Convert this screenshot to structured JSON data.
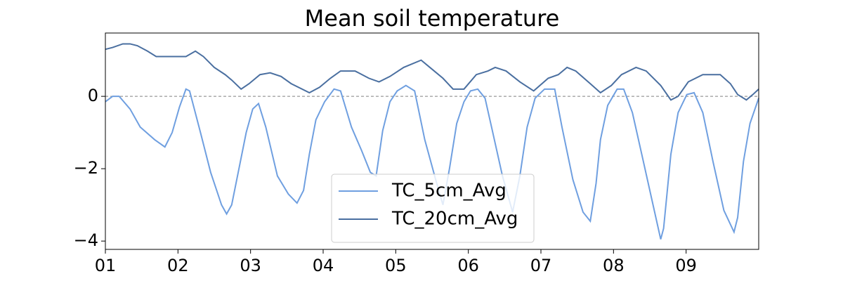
{
  "chart_data": {
    "type": "line",
    "title": "Mean soil temperature",
    "xlim": [
      1,
      10
    ],
    "xticks": [
      {
        "value": 1,
        "label": "01"
      },
      {
        "value": 2,
        "label": "02"
      },
      {
        "value": 3,
        "label": "03"
      },
      {
        "value": 4,
        "label": "04"
      },
      {
        "value": 5,
        "label": "05"
      },
      {
        "value": 6,
        "label": "06"
      },
      {
        "value": 7,
        "label": "07"
      },
      {
        "value": 8,
        "label": "08"
      },
      {
        "value": 9,
        "label": "09"
      }
    ],
    "ylim": [
      -4.23,
      1.75
    ],
    "yticks": [
      {
        "value": -4,
        "label": "−4"
      },
      {
        "value": -2,
        "label": "−2"
      },
      0
    ],
    "reference_line": 0,
    "legend": "lower center",
    "series": [
      {
        "name": "TC_5cm_Avg",
        "color": "#6f9fe0",
        "x": [
          1.0,
          1.1,
          1.19,
          1.34,
          1.48,
          1.68,
          1.82,
          1.92,
          2.02,
          2.11,
          2.16,
          2.31,
          2.45,
          2.6,
          2.67,
          2.74,
          2.84,
          2.94,
          3.03,
          3.11,
          3.21,
          3.37,
          3.52,
          3.64,
          3.73,
          3.81,
          3.9,
          4.02,
          4.15,
          4.24,
          4.39,
          4.53,
          4.65,
          4.73,
          4.82,
          4.92,
          5.02,
          5.14,
          5.26,
          5.4,
          5.55,
          5.65,
          5.74,
          5.84,
          5.94,
          6.03,
          6.13,
          6.23,
          6.32,
          6.47,
          6.61,
          6.71,
          6.81,
          6.92,
          7.05,
          7.19,
          7.29,
          7.44,
          7.58,
          7.68,
          7.76,
          7.82,
          7.92,
          8.05,
          8.14,
          8.26,
          8.4,
          8.55,
          8.65,
          8.69,
          8.79,
          8.89,
          9.01,
          9.11,
          9.23,
          9.37,
          9.52,
          9.66,
          9.71,
          9.79,
          9.88,
          10.0
        ],
        "values": [
          -0.15,
          0,
          0,
          -0.35,
          -0.85,
          -1.2,
          -1.4,
          -1.0,
          -0.3,
          0.2,
          0.15,
          -1.0,
          -2.1,
          -3.0,
          -3.25,
          -3.0,
          -2.0,
          -1.0,
          -0.35,
          -0.2,
          -0.85,
          -2.2,
          -2.7,
          -2.95,
          -2.6,
          -1.6,
          -0.65,
          -0.15,
          0.2,
          0.15,
          -0.85,
          -1.5,
          -2.1,
          -2.2,
          -0.95,
          -0.15,
          0.15,
          0.3,
          0.15,
          -1.2,
          -2.3,
          -3.0,
          -2.0,
          -0.75,
          -0.15,
          0.15,
          0.2,
          -0.05,
          -0.85,
          -2.2,
          -3.2,
          -2.2,
          -0.85,
          -0.05,
          0.2,
          0.2,
          -0.85,
          -2.3,
          -3.2,
          -3.45,
          -2.4,
          -1.2,
          -0.25,
          0.2,
          0.2,
          -0.45,
          -1.7,
          -3.05,
          -3.95,
          -3.65,
          -1.6,
          -0.45,
          0.05,
          0.1,
          -0.45,
          -1.8,
          -3.15,
          -3.75,
          -3.35,
          -1.8,
          -0.75,
          -0.05
        ]
      },
      {
        "name": "TC_20cm_Avg",
        "color": "#4a6fa0",
        "x": [
          1.0,
          1.1,
          1.24,
          1.34,
          1.44,
          1.58,
          1.7,
          1.87,
          2.11,
          2.24,
          2.35,
          2.5,
          2.65,
          2.74,
          2.87,
          2.98,
          3.13,
          3.27,
          3.42,
          3.56,
          3.81,
          3.95,
          4.1,
          4.24,
          4.44,
          4.63,
          4.77,
          4.92,
          5.11,
          5.35,
          5.47,
          5.65,
          5.79,
          5.94,
          6.11,
          6.27,
          6.37,
          6.52,
          6.71,
          6.9,
          7.1,
          7.24,
          7.36,
          7.48,
          7.68,
          7.82,
          7.97,
          8.11,
          8.31,
          8.45,
          8.65,
          8.79,
          8.89,
          9.03,
          9.23,
          9.47,
          9.61,
          9.71,
          9.83,
          9.92,
          10.0
        ],
        "values": [
          1.3,
          1.35,
          1.45,
          1.45,
          1.4,
          1.25,
          1.1,
          1.1,
          1.1,
          1.25,
          1.1,
          0.8,
          0.6,
          0.45,
          0.2,
          0.35,
          0.6,
          0.65,
          0.55,
          0.35,
          0.1,
          0.25,
          0.5,
          0.7,
          0.7,
          0.5,
          0.4,
          0.55,
          0.8,
          1.0,
          0.8,
          0.5,
          0.2,
          0.2,
          0.6,
          0.7,
          0.8,
          0.7,
          0.4,
          0.15,
          0.5,
          0.6,
          0.8,
          0.7,
          0.35,
          0.1,
          0.3,
          0.6,
          0.8,
          0.7,
          0.3,
          -0.1,
          0.0,
          0.4,
          0.6,
          0.6,
          0.35,
          0.05,
          -0.1,
          0.05,
          0.2
        ]
      }
    ]
  }
}
